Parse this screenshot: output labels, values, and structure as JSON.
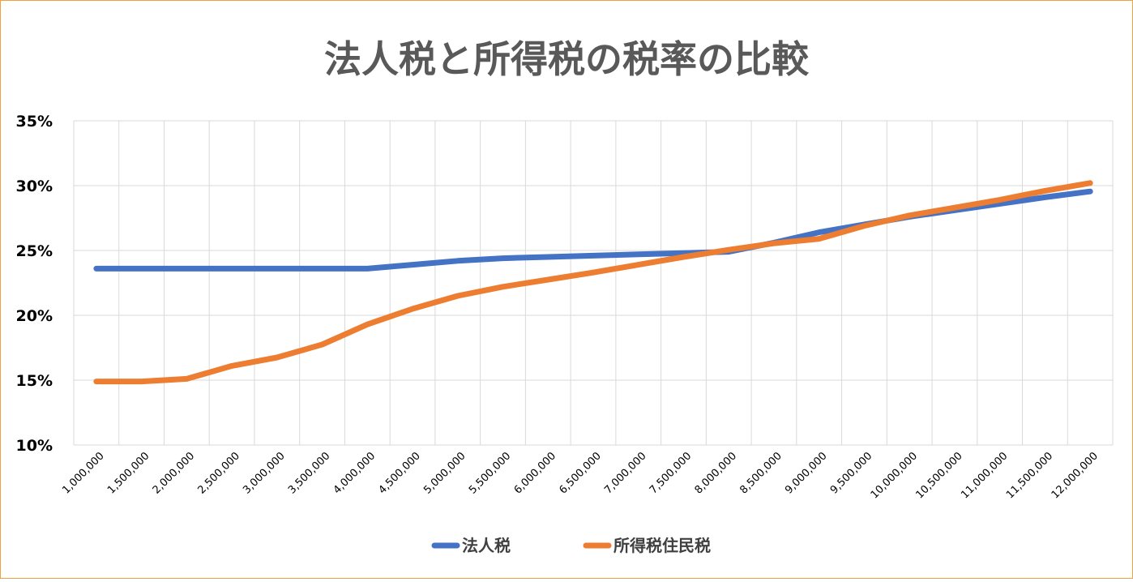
{
  "chart_data": {
    "type": "line",
    "title": "法人税と所得税の税率の比較",
    "xlabel": "",
    "ylabel": "",
    "ylim": [
      0.1,
      0.35
    ],
    "y_ticks": [
      "10%",
      "15%",
      "20%",
      "25%",
      "30%",
      "35%"
    ],
    "y_tick_values": [
      0.1,
      0.15,
      0.2,
      0.25,
      0.3,
      0.35
    ],
    "grid": true,
    "legend_position": "bottom",
    "categories": [
      "1,000,000",
      "1,500,000",
      "2,000,000",
      "2,500,000",
      "3,000,000",
      "3,500,000",
      "4,000,000",
      "4,500,000",
      "5,000,000",
      "5,500,000",
      "6,000,000",
      "6,500,000",
      "7,000,000",
      "7,500,000",
      "8,000,000",
      "8,500,000",
      "9,000,000",
      "9,500,000",
      "10,000,000",
      "10,500,000",
      "11,000,000",
      "11,500,000",
      "12,000,000"
    ],
    "series": [
      {
        "name": "法人税",
        "color": "#4472c4",
        "values": [
          0.236,
          0.236,
          0.236,
          0.236,
          0.236,
          0.236,
          0.236,
          0.239,
          0.242,
          0.244,
          0.245,
          0.246,
          0.247,
          0.248,
          0.249,
          0.256,
          0.264,
          0.27,
          0.276,
          0.281,
          0.286,
          0.291,
          0.2955
        ]
      },
      {
        "name": "所得税住民税",
        "color": "#ed7d31",
        "values": [
          0.149,
          0.149,
          0.151,
          0.161,
          0.1675,
          0.1775,
          0.193,
          0.205,
          0.215,
          0.222,
          0.2275,
          0.233,
          0.239,
          0.245,
          0.2505,
          0.2555,
          0.259,
          0.269,
          0.277,
          0.283,
          0.289,
          0.296,
          0.302
        ]
      }
    ]
  }
}
